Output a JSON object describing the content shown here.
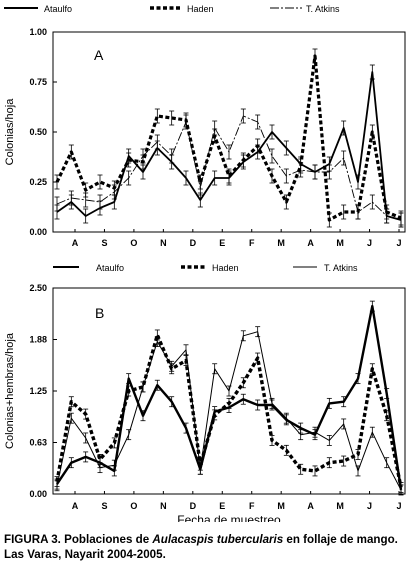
{
  "legend": {
    "a": "Ataulfo",
    "b": "Haden",
    "c": "T. Atkins"
  },
  "xlabel": "Fecha de muestreo",
  "caption": {
    "pre": "FIGURA 3. Poblaciones de ",
    "species": "Aulacaspis tubercularis",
    "post": " en follaje de mango. Las Varas, Nayarit 2004-2005."
  },
  "chart_data": [
    {
      "type": "line",
      "panel": "A",
      "ylabel": "Colonias/hoja",
      "ylim": [
        0,
        1.0
      ],
      "yticks": [
        "0.00",
        "0.25",
        "0.50",
        "0.75",
        "1.00"
      ],
      "month_labels": [
        "A",
        "S",
        "O",
        "N",
        "D",
        "E",
        "F",
        "M",
        "A",
        "M",
        "J",
        "J"
      ],
      "grid": false,
      "legend_position": "top",
      "series": [
        {
          "name": "Ataulfo",
          "style": "solid",
          "values": [
            0.1,
            0.15,
            0.08,
            0.12,
            0.15,
            0.38,
            0.3,
            0.42,
            0.35,
            0.27,
            0.16,
            0.27,
            0.27,
            0.35,
            0.4,
            0.5,
            0.42,
            0.34,
            0.3,
            0.34,
            0.52,
            0.25,
            0.8,
            0.08,
            0.06
          ]
        },
        {
          "name": "Haden",
          "style": "dashed",
          "values": [
            0.25,
            0.4,
            0.21,
            0.25,
            0.22,
            0.36,
            0.35,
            0.58,
            0.57,
            0.56,
            0.25,
            0.48,
            0.28,
            0.36,
            0.43,
            0.28,
            0.15,
            0.33,
            0.88,
            0.06,
            0.1,
            0.1,
            0.5,
            0.1,
            0.07
          ]
        },
        {
          "name": "T. Atkins",
          "style": "thin",
          "values": [
            0.14,
            0.17,
            0.16,
            0.15,
            0.2,
            0.27,
            0.38,
            0.45,
            0.38,
            0.55,
            0.22,
            0.52,
            0.4,
            0.58,
            0.55,
            0.38,
            0.28,
            0.31,
            0.3,
            0.3,
            0.37,
            0.1,
            0.15,
            0.08,
            0.06
          ]
        }
      ]
    },
    {
      "type": "line",
      "panel": "B",
      "ylabel": "Colonias+hembras/hoja",
      "ylim": [
        0,
        2.5
      ],
      "yticks": [
        "0.00",
        "0.63",
        "1.25",
        "1.88",
        "2.50"
      ],
      "month_labels": [
        "A",
        "S",
        "O",
        "N",
        "D",
        "E",
        "F",
        "M",
        "A",
        "M",
        "J",
        "J"
      ],
      "grid": false,
      "legend_position": "top",
      "series": [
        {
          "name": "Ataulfo",
          "style": "solid",
          "values": [
            0.12,
            0.38,
            0.45,
            0.38,
            0.28,
            1.4,
            0.95,
            1.32,
            1.12,
            0.8,
            0.3,
            1.0,
            1.05,
            1.15,
            1.08,
            1.08,
            0.9,
            0.8,
            0.72,
            1.1,
            1.12,
            1.4,
            2.28,
            1.22,
            0.05
          ]
        },
        {
          "name": "Haden",
          "style": "dashed",
          "values": [
            0.15,
            1.12,
            0.97,
            0.42,
            0.62,
            1.25,
            1.3,
            1.93,
            1.52,
            1.62,
            0.35,
            0.96,
            1.1,
            1.35,
            1.65,
            0.65,
            0.53,
            0.3,
            0.28,
            0.38,
            0.4,
            0.48,
            1.52,
            0.95,
            0.08
          ]
        },
        {
          "name": "T. Atkins",
          "style": "thin",
          "values": [
            0.1,
            0.92,
            0.68,
            0.32,
            0.35,
            0.72,
            1.3,
            1.85,
            1.55,
            1.75,
            0.3,
            1.52,
            1.25,
            1.92,
            1.97,
            1.1,
            0.92,
            0.72,
            0.75,
            0.65,
            0.85,
            0.28,
            0.75,
            0.38,
            0.05
          ]
        }
      ]
    }
  ]
}
